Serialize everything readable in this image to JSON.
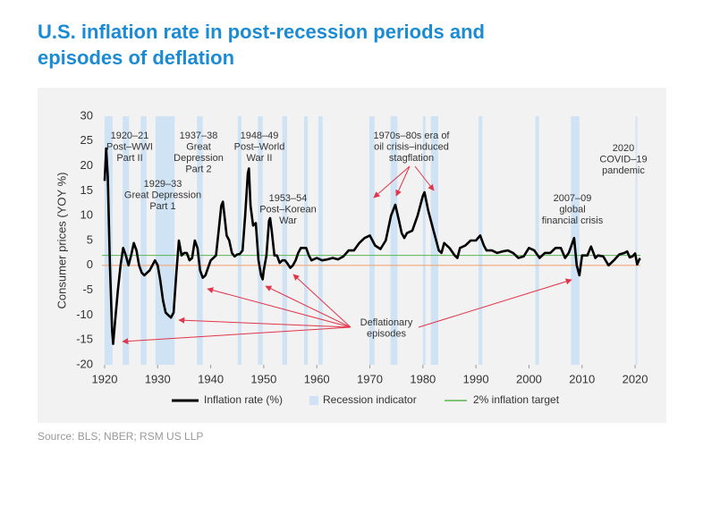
{
  "chart_data": {
    "type": "line",
    "title": [
      "U.S. inflation rate in post-recession periods and",
      "episodes of deflation"
    ],
    "ylabel": "Consumer prices (YOY %)",
    "source": "Source: BLS; NBER; RSM US LLP",
    "xlim": [
      1919.5,
      2021
    ],
    "xticks": [
      1920,
      1930,
      1940,
      1950,
      1960,
      1970,
      1980,
      1990,
      2000,
      2010,
      2020
    ],
    "ylim": [
      -20,
      30
    ],
    "yticks": [
      -20,
      -15,
      -10,
      -5,
      0,
      5,
      10,
      15,
      20,
      25,
      30
    ],
    "legend": "bottom",
    "series": [
      {
        "name": "Inflation rate (%)",
        "color": "#000000",
        "x": [
          1920.0,
          1920.3,
          1920.6,
          1921.0,
          1921.4,
          1921.6,
          1922.0,
          1922.5,
          1923.0,
          1923.5,
          1924.0,
          1924.5,
          1925.0,
          1925.5,
          1926.0,
          1926.5,
          1927.0,
          1927.5,
          1928.0,
          1928.5,
          1929.0,
          1929.5,
          1930.0,
          1930.5,
          1931.0,
          1931.5,
          1932.0,
          1932.5,
          1933.0,
          1933.5,
          1934.0,
          1934.5,
          1935.0,
          1935.5,
          1936.0,
          1936.5,
          1937.0,
          1937.5,
          1938.0,
          1938.5,
          1939.0,
          1939.5,
          1940.0,
          1940.5,
          1941.0,
          1941.5,
          1942.0,
          1942.3,
          1942.7,
          1943.0,
          1943.5,
          1944.0,
          1944.5,
          1945.0,
          1945.5,
          1946.0,
          1946.5,
          1947.0,
          1947.2,
          1947.5,
          1948.0,
          1948.5,
          1949.0,
          1949.5,
          1949.8,
          1950.0,
          1950.5,
          1951.0,
          1951.2,
          1951.5,
          1952.0,
          1952.5,
          1953.0,
          1953.5,
          1954.0,
          1954.5,
          1955.0,
          1955.5,
          1956.0,
          1956.5,
          1957.0,
          1957.5,
          1958.0,
          1958.5,
          1959.0,
          1960.0,
          1961.0,
          1962.0,
          1963.0,
          1964.0,
          1965.0,
          1966.0,
          1967.0,
          1968.0,
          1969.0,
          1970.0,
          1971.0,
          1972.0,
          1973.0,
          1974.0,
          1974.8,
          1975.5,
          1976.0,
          1976.5,
          1977.0,
          1978.0,
          1979.0,
          1980.0,
          1980.3,
          1981.0,
          1982.0,
          1982.5,
          1983.0,
          1983.5,
          1984.0,
          1985.0,
          1986.0,
          1986.5,
          1987.0,
          1988.0,
          1989.0,
          1990.0,
          1990.8,
          1991.5,
          1992.0,
          1993.0,
          1994.0,
          1995.0,
          1996.0,
          1997.0,
          1998.0,
          1999.0,
          2000.0,
          2001.0,
          2002.0,
          2003.0,
          2004.0,
          2005.0,
          2006.0,
          2006.8,
          2007.5,
          2008.5,
          2009.0,
          2009.5,
          2010.0,
          2011.0,
          2011.7,
          2012.5,
          2013.0,
          2014.0,
          2015.0,
          2016.0,
          2017.0,
          2018.0,
          2018.5,
          2019.0,
          2019.5,
          2020.0,
          2020.4,
          2020.8,
          2021.0
        ],
        "values": [
          17,
          23.5,
          18,
          0,
          -13,
          -15.8,
          -11,
          -5,
          0,
          3.5,
          2,
          0,
          2,
          4.5,
          3,
          0,
          -1.5,
          -2,
          -1.5,
          -1,
          0,
          1,
          0,
          -3,
          -7,
          -9.5,
          -10,
          -10.5,
          -9.5,
          -2,
          5,
          2,
          2.5,
          2.5,
          1,
          1.5,
          5,
          3.5,
          -1,
          -2.5,
          -2,
          -0.5,
          1,
          1.5,
          2,
          7,
          12,
          12.8,
          9,
          6,
          5,
          2.5,
          1.8,
          2.2,
          2.3,
          3,
          10,
          18.5,
          19.5,
          12,
          8,
          8.5,
          1,
          -2,
          -2.8,
          -1,
          2,
          9,
          9.5,
          7,
          2,
          2,
          0.5,
          1,
          1,
          0.3,
          -0.5,
          0,
          1,
          2.5,
          3.5,
          3.5,
          3.5,
          2,
          1,
          1.5,
          1,
          1.2,
          1.5,
          1.2,
          1.8,
          3,
          3,
          4.5,
          5.5,
          6,
          4,
          3.3,
          5,
          10,
          12.2,
          9,
          6.5,
          5.5,
          6.5,
          7,
          10,
          14,
          14.7,
          11,
          7,
          5,
          3,
          2.5,
          4.5,
          3.5,
          2,
          1.5,
          3.5,
          4,
          5,
          5,
          6,
          4,
          3,
          3,
          2.5,
          2.8,
          3,
          2.5,
          1.5,
          1.8,
          3.5,
          3,
          1.5,
          2.5,
          2.5,
          3.5,
          3.5,
          1.5,
          2.5,
          5.5,
          0,
          -2,
          2,
          2,
          3.8,
          1.5,
          2,
          1.8,
          0,
          1,
          2.2,
          2.5,
          2.8,
          1.6,
          1.8,
          2.4,
          0.2,
          1.2,
          1.4
        ]
      }
    ],
    "recessions": {
      "name": "Recession indicator",
      "color": "#cfe3f5",
      "periods": [
        [
          1920.0,
          1921.5
        ],
        [
          1923.4,
          1924.6
        ],
        [
          1926.8,
          1927.9
        ],
        [
          1929.6,
          1933.2
        ],
        [
          1937.4,
          1938.5
        ],
        [
          1945.1,
          1945.8
        ],
        [
          1948.9,
          1949.8
        ],
        [
          1953.5,
          1954.4
        ],
        [
          1957.6,
          1958.3
        ],
        [
          1960.3,
          1961.1
        ],
        [
          1969.9,
          1970.9
        ],
        [
          1973.9,
          1975.2
        ],
        [
          1980.0,
          1980.5
        ],
        [
          1981.5,
          1982.9
        ],
        [
          1990.5,
          1991.2
        ],
        [
          2001.2,
          2001.9
        ],
        [
          2007.9,
          2009.5
        ],
        [
          2020.1,
          2020.4
        ]
      ]
    },
    "target": {
      "name": "2% inflation target",
      "value": 2,
      "color": "#5ab552"
    },
    "zero_line_color": "#f2a77a",
    "annotations": [
      [
        "1920–21",
        "Post–WWI",
        "Part II"
      ],
      [
        "1929–33",
        "Great Depression",
        "Part 1"
      ],
      [
        "1937–38",
        "Great",
        "Depression",
        "Part 2"
      ],
      [
        "1948–49",
        "Post–World",
        "War II"
      ],
      [
        "1953–54",
        "Post–Korean",
        "War"
      ],
      [
        "1970s–80s era of",
        "oil crisis–induced",
        "stagflation"
      ],
      [
        "2007–09",
        "global",
        "financial crisis"
      ],
      [
        "2020",
        "COVID–19",
        "pandemic"
      ],
      [
        "Deflationary",
        "episodes"
      ]
    ]
  }
}
